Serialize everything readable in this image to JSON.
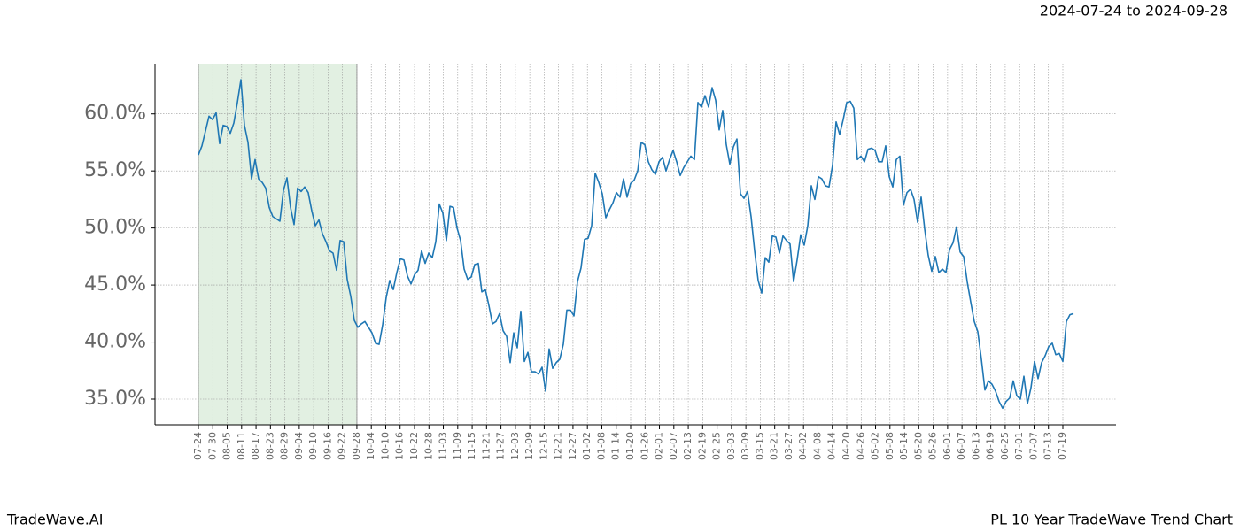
{
  "chart_data": {
    "type": "line",
    "title": "PL 10 Year TradeWave Trend Chart",
    "date_range": "2024-07-24 to 2024-09-28",
    "brand": "TradeWave.AI",
    "color": "#1f77b4",
    "shade_x": [
      0,
      44.73
    ],
    "shade_color": "#d6ead6",
    "grid": true,
    "values": [
      56.4,
      57.2,
      58.5,
      59.8,
      59.5,
      60.1,
      57.4,
      59.0,
      58.9,
      58.3,
      59.2,
      61.0,
      63.0,
      59.0,
      57.5,
      54.3,
      56.0,
      54.3,
      54.0,
      53.5,
      51.8,
      51.0,
      50.8,
      50.6,
      53.3,
      54.4,
      51.8,
      50.3,
      53.5,
      53.2,
      53.6,
      53.1,
      51.5,
      50.2,
      50.7,
      49.5,
      48.8,
      48.0,
      47.8,
      46.3,
      48.9,
      48.8,
      45.5,
      44.0,
      41.9,
      41.3,
      41.6,
      41.8,
      41.3,
      40.8,
      39.9,
      39.8,
      41.5,
      43.9,
      45.4,
      44.6,
      46.1,
      47.3,
      47.2,
      45.8,
      45.1,
      45.9,
      46.3,
      48.0,
      46.9,
      47.8,
      47.4,
      48.8,
      52.1,
      51.3,
      48.9,
      51.9,
      51.8,
      50.0,
      48.9,
      46.4,
      45.5,
      45.7,
      46.8,
      46.9,
      44.4,
      44.6,
      43.2,
      41.6,
      41.8,
      42.5,
      41.0,
      40.5,
      38.2,
      40.8,
      39.5,
      42.7,
      38.3,
      39.1,
      37.4,
      37.4,
      37.2,
      37.8,
      35.7,
      39.4,
      37.7,
      38.2,
      38.5,
      39.8,
      42.8,
      42.8,
      42.3,
      45.3,
      46.5,
      49.0,
      49.1,
      50.2,
      54.8,
      54.0,
      53.0,
      50.9,
      51.6,
      52.2,
      53.1,
      52.7,
      54.3,
      52.7,
      53.9,
      54.2,
      55.0,
      57.5,
      57.3,
      55.8,
      55.1,
      54.7,
      55.8,
      56.2,
      55.0,
      56.0,
      56.8,
      55.8,
      54.6,
      55.3,
      55.8,
      56.3,
      56.0,
      61.0,
      60.6,
      61.6,
      60.6,
      62.3,
      61.2,
      58.6,
      60.3,
      57.3,
      55.6,
      57.1,
      57.8,
      53.0,
      52.6,
      53.2,
      51.0,
      48.0,
      45.4,
      44.3,
      47.4,
      47.0,
      49.3,
      49.2,
      47.8,
      49.3,
      48.9,
      48.6,
      45.3,
      47.2,
      49.4,
      48.5,
      50.2,
      53.7,
      52.5,
      54.5,
      54.3,
      53.7,
      53.6,
      55.5,
      59.3,
      58.2,
      59.5,
      61.0,
      61.1,
      60.5,
      56.0,
      56.3,
      55.8,
      56.9,
      57.0,
      56.8,
      55.8,
      55.8,
      57.2,
      54.5,
      53.6,
      56.0,
      56.3,
      52.0,
      53.1,
      53.4,
      52.5,
      50.5,
      52.7,
      49.9,
      47.6,
      46.2,
      47.5,
      46.1,
      46.4,
      46.1,
      48.1,
      48.7,
      50.1,
      47.9,
      47.5,
      45.3,
      43.5,
      41.8,
      40.9,
      38.5,
      35.8,
      36.6,
      36.3,
      35.7,
      34.8,
      34.2,
      34.8,
      35.1,
      36.6,
      35.3,
      35.0,
      37.0,
      34.6,
      36.0,
      38.3,
      36.8,
      38.2,
      38.8,
      39.6,
      39.9,
      38.9,
      39.0,
      38.3,
      41.8,
      42.4,
      42.5
    ],
    "xlim": [
      -12.25,
      259
    ],
    "xticks": [
      {
        "value": 0,
        "label": "07-24"
      },
      {
        "value": 4.07,
        "label": "07-30"
      },
      {
        "value": 8.13,
        "label": "08-05"
      },
      {
        "value": 12.2,
        "label": "08-11"
      },
      {
        "value": 16.27,
        "label": "08-17"
      },
      {
        "value": 20.33,
        "label": "08-23"
      },
      {
        "value": 24.4,
        "label": "08-29"
      },
      {
        "value": 28.47,
        "label": "09-04"
      },
      {
        "value": 32.53,
        "label": "09-10"
      },
      {
        "value": 36.6,
        "label": "09-16"
      },
      {
        "value": 40.67,
        "label": "09-22"
      },
      {
        "value": 44.73,
        "label": "09-28"
      },
      {
        "value": 48.8,
        "label": "10-04"
      },
      {
        "value": 52.87,
        "label": "10-10"
      },
      {
        "value": 56.93,
        "label": "10-16"
      },
      {
        "value": 61,
        "label": "10-22"
      },
      {
        "value": 65.07,
        "label": "10-28"
      },
      {
        "value": 69.13,
        "label": "11-03"
      },
      {
        "value": 73.2,
        "label": "11-09"
      },
      {
        "value": 77.27,
        "label": "11-15"
      },
      {
        "value": 81.33,
        "label": "11-21"
      },
      {
        "value": 85.4,
        "label": "11-27"
      },
      {
        "value": 89.47,
        "label": "12-03"
      },
      {
        "value": 93.53,
        "label": "12-09"
      },
      {
        "value": 97.6,
        "label": "12-15"
      },
      {
        "value": 101.67,
        "label": "12-21"
      },
      {
        "value": 105.73,
        "label": "12-27"
      },
      {
        "value": 109.8,
        "label": "01-02"
      },
      {
        "value": 113.87,
        "label": "01-08"
      },
      {
        "value": 117.93,
        "label": "01-14"
      },
      {
        "value": 122,
        "label": "01-20"
      },
      {
        "value": 126.07,
        "label": "01-26"
      },
      {
        "value": 130.13,
        "label": "02-01"
      },
      {
        "value": 134.2,
        "label": "02-07"
      },
      {
        "value": 138.27,
        "label": "02-13"
      },
      {
        "value": 142.33,
        "label": "02-19"
      },
      {
        "value": 146.4,
        "label": "02-25"
      },
      {
        "value": 150.47,
        "label": "03-03"
      },
      {
        "value": 154.53,
        "label": "03-09"
      },
      {
        "value": 158.6,
        "label": "03-15"
      },
      {
        "value": 162.67,
        "label": "03-21"
      },
      {
        "value": 166.73,
        "label": "03-27"
      },
      {
        "value": 170.8,
        "label": "04-02"
      },
      {
        "value": 174.87,
        "label": "04-08"
      },
      {
        "value": 178.93,
        "label": "04-14"
      },
      {
        "value": 183,
        "label": "04-20"
      },
      {
        "value": 187.07,
        "label": "04-26"
      },
      {
        "value": 191.13,
        "label": "05-02"
      },
      {
        "value": 195.2,
        "label": "05-08"
      },
      {
        "value": 199.27,
        "label": "05-14"
      },
      {
        "value": 203.33,
        "label": "05-20"
      },
      {
        "value": 207.4,
        "label": "05-26"
      },
      {
        "value": 211.47,
        "label": "06-01"
      },
      {
        "value": 215.53,
        "label": "06-07"
      },
      {
        "value": 219.6,
        "label": "06-13"
      },
      {
        "value": 223.67,
        "label": "06-19"
      },
      {
        "value": 227.73,
        "label": "06-25"
      },
      {
        "value": 231.8,
        "label": "07-01"
      },
      {
        "value": 235.87,
        "label": "07-07"
      },
      {
        "value": 239.93,
        "label": "07-13"
      },
      {
        "value": 244,
        "label": "07-19"
      }
    ],
    "ylim": [
      32.75,
      64.4
    ],
    "yticks": [
      {
        "value": 35,
        "label": "35.0%"
      },
      {
        "value": 40,
        "label": "40.0%"
      },
      {
        "value": 45,
        "label": "45.0%"
      },
      {
        "value": 50,
        "label": "50.0%"
      },
      {
        "value": 55,
        "label": "55.0%"
      },
      {
        "value": 60,
        "label": "60.0%"
      }
    ]
  }
}
